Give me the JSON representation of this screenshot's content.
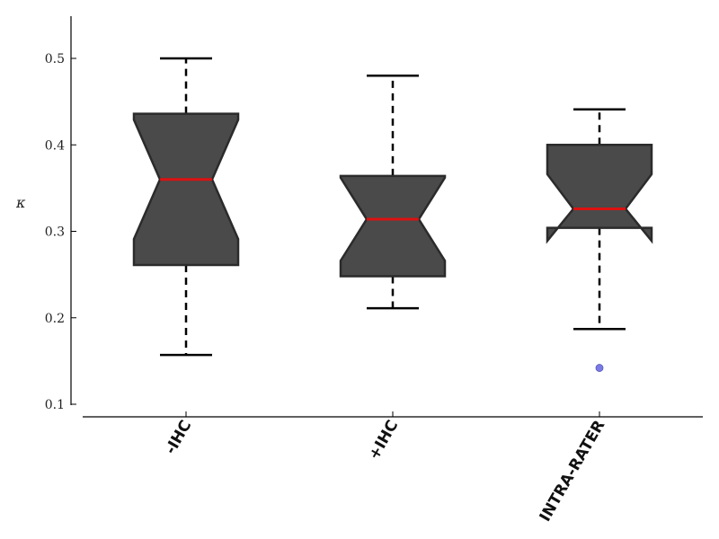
{
  "chart_data": {
    "type": "box",
    "notched": true,
    "title": "",
    "xlabel": "",
    "ylabel": "κ",
    "ylim": [
      0.09,
      0.55
    ],
    "yticks": [
      0.1,
      0.2,
      0.3,
      0.4,
      0.5
    ],
    "ytick_labels": [
      "0.1",
      "0.2",
      "0.3",
      "0.4",
      "0.5"
    ],
    "categories": [
      "-IHC",
      "+IHC",
      "INTRA-RATER"
    ],
    "boxes": [
      {
        "category": "-IHC",
        "whisker_low": 0.157,
        "q1": 0.261,
        "median": 0.36,
        "q3": 0.436,
        "whisker_high": 0.5,
        "notch_low": 0.291,
        "notch_high": 0.429,
        "outliers": []
      },
      {
        "category": "+IHC",
        "whisker_low": 0.211,
        "q1": 0.248,
        "median": 0.314,
        "q3": 0.364,
        "whisker_high": 0.48,
        "notch_low": 0.266,
        "notch_high": 0.362,
        "outliers": []
      },
      {
        "category": "INTRA-RATER",
        "whisker_low": 0.187,
        "q1": 0.304,
        "median": 0.326,
        "q3": 0.4,
        "whisker_high": 0.441,
        "notch_low": 0.289,
        "notch_high": 0.366,
        "outliers": [
          0.142
        ]
      }
    ],
    "colors": {
      "box_fill": "#4a4a4a",
      "box_edge": "#2b2b2b",
      "median": "#dd1111",
      "whisker": "#000000",
      "outlier": "#7b7be6"
    },
    "grid": false,
    "legend": "none"
  }
}
